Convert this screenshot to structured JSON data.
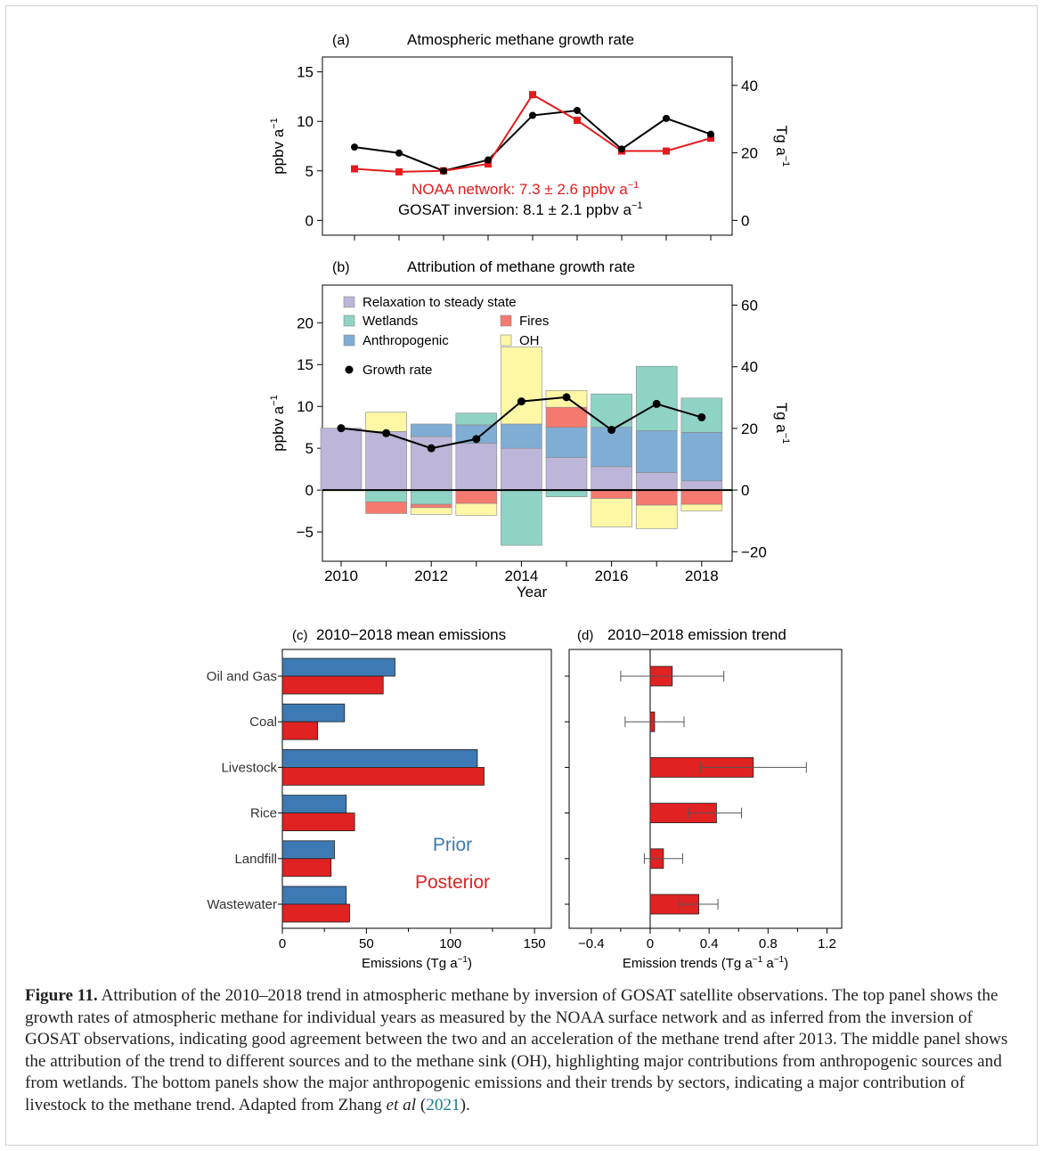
{
  "colors": {
    "noaa": "#e41a1c",
    "gosat": "#000000",
    "relax": "#bdb6d9",
    "wetlands": "#8fd3c5",
    "anthro": "#7fadd4",
    "fires": "#f47a6f",
    "oh": "#fdf7a6",
    "prior": "#3d7ab3",
    "posterior": "#e02222",
    "trend": "#e02222",
    "caption_link": "#1f7a8c"
  },
  "panel_a": {
    "tag": "(a)",
    "title": "Atmospheric methane growth rate",
    "ylabel_left": "ppbv a",
    "ylabel_left_sup": "−1",
    "ylabel_right": "Tg a",
    "ylabel_right_sup": "−1",
    "left_ticks": [
      "0",
      "5",
      "10",
      "15"
    ],
    "right_ticks": [
      "0",
      "20",
      "40"
    ],
    "noaa_label": "NOAA network: 7.3 ± 2.6 ppbv a",
    "noaa_label_sup": "−1",
    "gosat_label": "GOSAT inversion: 8.1 ± 2.1 ppbv a",
    "gosat_label_sup": "−1"
  },
  "panel_b": {
    "tag": "(b)",
    "title": "Attribution of methane growth rate",
    "ylabel_left": "ppbv a",
    "ylabel_left_sup": "−1",
    "ylabel_right": "Tg a",
    "ylabel_right_sup": "−1",
    "xlabel": "Year",
    "left_ticks": [
      "−5",
      "0",
      "5",
      "10",
      "15",
      "20"
    ],
    "right_ticks": [
      "−20",
      "0",
      "20",
      "40",
      "60"
    ],
    "x_ticks": [
      "2010",
      "2012",
      "2014",
      "2016",
      "2018"
    ],
    "legend": {
      "relax": "Relaxation to steady state",
      "wetlands": "Wetlands",
      "anthro": "Anthropogenic",
      "fires": "Fires",
      "oh": "OH",
      "growth": "Growth rate"
    }
  },
  "panel_c": {
    "tag": "(c)",
    "title": "2010−2018 mean emissions",
    "xlabel": "Emissions (Tg a",
    "xlabel_sup": "−1",
    "xlabel_end": ")",
    "categories": [
      "Oil and Gas",
      "Coal",
      "Livestock",
      "Rice",
      "Landfill",
      "Wastewater"
    ],
    "x_ticks": [
      "0",
      "50",
      "100",
      "150"
    ],
    "prior_label": "Prior",
    "posterior_label": "Posterior"
  },
  "panel_d": {
    "tag": "(d)",
    "title": "2010−2018 emission trend",
    "xlabel": "Emission trends (Tg a",
    "xlabel_sup1": "−1",
    "xlabel_mid": " a",
    "xlabel_sup2": "−1",
    "xlabel_end": ")",
    "x_ticks": [
      "−0.4",
      "0",
      "0.4",
      "0.8",
      "1.2"
    ]
  },
  "caption": {
    "label": "Figure 11.",
    "text": " Attribution of the 2010–2018 trend in atmospheric methane by inversion of GOSAT satellite observations. The top panel shows the growth rates of atmospheric methane for individual years as measured by the NOAA surface network and as inferred from the inversion of GOSAT observations, indicating good agreement between the two and an acceleration of the methane trend after 2013. The middle panel shows the attribution of the trend to different sources and to the methane sink (OH), highlighting major contributions from anthropogenic sources and from wetlands. The bottom panels show the major anthropogenic emissions and their trends by sectors, indicating a major contribution of livestock to the methane trend. Adapted from Zhang ",
    "etal": "et al",
    "cite_open": " (",
    "cite_year": "2021",
    "cite_close": ")."
  },
  "chart_data": [
    {
      "type": "line",
      "title": "Atmospheric methane growth rate",
      "ylabel": "ppbv a−1",
      "y2label": "Tg a−1",
      "x": [
        2010,
        2011,
        2012,
        2013,
        2014,
        2015,
        2016,
        2017,
        2018
      ],
      "ylim": [
        -1.5,
        16.5
      ],
      "y2lim": [
        -4.4,
        48.4
      ],
      "series": [
        {
          "name": "NOAA network",
          "values": [
            5.2,
            4.9,
            5.0,
            5.7,
            12.7,
            10.1,
            7.0,
            7.0,
            8.3
          ]
        },
        {
          "name": "GOSAT inversion",
          "values": [
            7.4,
            6.8,
            5.0,
            6.1,
            10.6,
            11.1,
            7.2,
            10.3,
            8.7
          ]
        }
      ]
    },
    {
      "type": "bar",
      "stacked": true,
      "title": "Attribution of methane growth rate",
      "xlabel": "Year",
      "ylabel": "ppbv a−1",
      "y2label": "Tg a−1",
      "x": [
        2010,
        2011,
        2012,
        2013,
        2014,
        2015,
        2016,
        2017,
        2018
      ],
      "ylim": [
        -8.5,
        24.5
      ],
      "y2lim": [
        -23.1,
        66.5
      ],
      "series": [
        {
          "name": "Relaxation to steady state",
          "values": [
            7.4,
            7.0,
            6.4,
            5.6,
            5.0,
            3.9,
            2.8,
            2.1,
            1.1
          ]
        },
        {
          "name": "Anthropogenic",
          "values": [
            0,
            0,
            1.5,
            2.2,
            2.9,
            3.6,
            4.7,
            5.0,
            5.8
          ]
        },
        {
          "name": "Wetlands",
          "values": [
            0,
            -1.4,
            -1.7,
            1.4,
            -6.6,
            -0.8,
            4.0,
            7.7,
            4.1
          ]
        },
        {
          "name": "Fires",
          "values": [
            0,
            -1.4,
            -0.4,
            -1.6,
            0,
            2.4,
            -1.0,
            -1.8,
            -1.7
          ]
        },
        {
          "name": "OH",
          "values": [
            0,
            2.3,
            -0.8,
            -1.4,
            9.2,
            2.0,
            -3.4,
            -2.8,
            -0.8
          ]
        }
      ],
      "growth_rate": {
        "name": "Growth rate",
        "values": [
          7.4,
          6.8,
          5.0,
          6.1,
          10.6,
          11.1,
          7.2,
          10.3,
          8.7
        ]
      },
      "legend": "top-left"
    },
    {
      "type": "bar",
      "orientation": "horizontal",
      "title": "2010−2018 mean emissions",
      "xlabel": "Emissions (Tg a−1)",
      "categories": [
        "Oil and Gas",
        "Coal",
        "Livestock",
        "Rice",
        "Landfill",
        "Wastewater"
      ],
      "xlim": [
        0,
        160
      ],
      "series": [
        {
          "name": "Prior",
          "values": [
            67,
            37,
            116,
            38,
            31,
            38
          ]
        },
        {
          "name": "Posterior",
          "values": [
            60,
            21,
            120,
            43,
            29,
            40
          ]
        }
      ]
    },
    {
      "type": "bar",
      "orientation": "horizontal",
      "title": "2010−2018 emission trend",
      "xlabel": "Emission trends (Tg a−1 a−1)",
      "categories": [
        "Oil and Gas",
        "Coal",
        "Livestock",
        "Rice",
        "Landfill",
        "Wastewater"
      ],
      "xlim": [
        -0.55,
        1.3
      ],
      "values": [
        0.15,
        0.03,
        0.7,
        0.45,
        0.09,
        0.33
      ],
      "error_low": [
        -0.2,
        -0.17,
        0.34,
        0.26,
        -0.04,
        0.2
      ],
      "error_high": [
        0.5,
        0.23,
        1.06,
        0.62,
        0.22,
        0.46
      ]
    }
  ]
}
